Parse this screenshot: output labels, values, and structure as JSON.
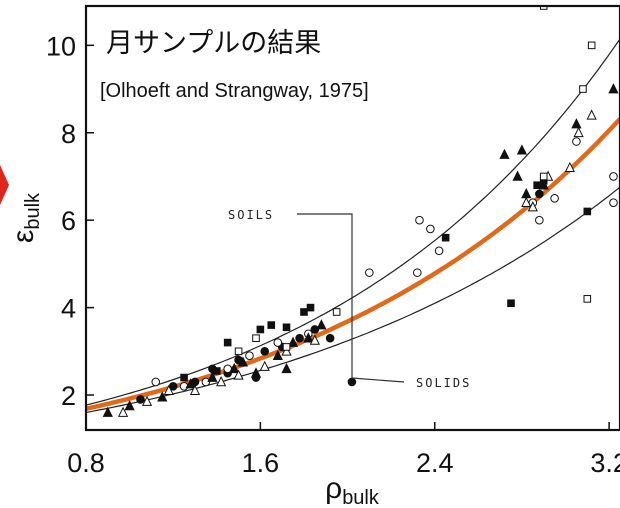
{
  "chart_data": {
    "type": "scatter",
    "title": "月サンプルの結果",
    "subtitle": "[Olhoeft and Strangway, 1975]",
    "xlabel": {
      "symbol": "ρ",
      "sub": "bulk"
    },
    "ylabel": {
      "symbol": "ε",
      "sub": "bulk"
    },
    "xlim": [
      0.8,
      3.25
    ],
    "ylim": [
      1.2,
      10.9
    ],
    "x_ticks": [
      0.8,
      1.6,
      2.4,
      3.2
    ],
    "x_tick_labels": [
      "0.8",
      "1.6",
      "2.4",
      "3.2"
    ],
    "y_ticks": [
      2,
      4,
      6,
      8,
      10
    ],
    "y_tick_labels": [
      "2",
      "4",
      "6",
      "8",
      "10"
    ],
    "grid": false,
    "annotations": [
      {
        "text": "SOILS",
        "points_to": {
          "x": 2.0,
          "y": 4.9
        }
      },
      {
        "text": "SOLIDS",
        "points_to": {
          "x": 2.0,
          "y": 4.9
        }
      }
    ],
    "curves": [
      {
        "role": "fit",
        "color": "#e06a1a",
        "formula": "1.919^x",
        "x_range": [
          0.8,
          3.25
        ]
      },
      {
        "role": "upper bound",
        "color": "#222222",
        "formula": "2.04^x",
        "x_range": [
          0.8,
          3.25
        ]
      },
      {
        "role": "lower bound",
        "color": "#222222",
        "formula": "1.8^x",
        "x_range": [
          0.8,
          3.25
        ]
      }
    ],
    "series": [
      {
        "marker": "filled-circle",
        "points": [
          [
            1.05,
            1.9
          ],
          [
            1.2,
            2.2
          ],
          [
            1.3,
            2.3
          ],
          [
            1.38,
            2.6
          ],
          [
            1.45,
            2.5
          ],
          [
            1.5,
            2.8
          ],
          [
            1.58,
            2.4
          ],
          [
            1.62,
            3.0
          ],
          [
            1.7,
            3.1
          ],
          [
            1.78,
            3.3
          ],
          [
            1.85,
            3.5
          ],
          [
            1.92,
            3.3
          ],
          [
            2.02,
            2.3
          ],
          [
            2.88,
            6.6
          ]
        ]
      },
      {
        "marker": "open-circle",
        "points": [
          [
            1.12,
            2.3
          ],
          [
            1.25,
            2.2
          ],
          [
            1.35,
            2.3
          ],
          [
            1.45,
            2.6
          ],
          [
            1.55,
            2.9
          ],
          [
            1.68,
            3.2
          ],
          [
            1.82,
            3.4
          ],
          [
            2.1,
            4.8
          ],
          [
            2.32,
            4.8
          ],
          [
            2.33,
            6.0
          ],
          [
            2.38,
            5.8
          ],
          [
            2.42,
            5.3
          ],
          [
            2.85,
            6.4
          ],
          [
            2.88,
            6.0
          ],
          [
            3.05,
            7.8
          ],
          [
            3.22,
            7.0
          ],
          [
            3.22,
            6.4
          ],
          [
            2.95,
            6.5
          ]
        ]
      },
      {
        "marker": "filled-triangle",
        "points": [
          [
            0.9,
            1.6
          ],
          [
            1.0,
            1.75
          ],
          [
            1.15,
            1.95
          ],
          [
            1.28,
            2.25
          ],
          [
            1.38,
            2.4
          ],
          [
            1.48,
            2.6
          ],
          [
            1.52,
            2.75
          ],
          [
            1.58,
            2.5
          ],
          [
            1.68,
            2.9
          ],
          [
            1.72,
            2.6
          ],
          [
            1.75,
            3.2
          ],
          [
            1.82,
            3.3
          ],
          [
            1.88,
            3.6
          ],
          [
            2.72,
            7.5
          ],
          [
            2.78,
            7.0
          ],
          [
            2.8,
            7.6
          ],
          [
            2.82,
            6.6
          ],
          [
            2.9,
            6.8
          ],
          [
            3.05,
            8.2
          ],
          [
            3.22,
            9.0
          ]
        ]
      },
      {
        "marker": "open-triangle",
        "points": [
          [
            0.97,
            1.6
          ],
          [
            1.08,
            1.85
          ],
          [
            1.18,
            2.1
          ],
          [
            1.3,
            2.1
          ],
          [
            1.42,
            2.3
          ],
          [
            1.5,
            2.45
          ],
          [
            1.62,
            2.65
          ],
          [
            1.72,
            3.0
          ],
          [
            1.85,
            3.25
          ],
          [
            2.82,
            6.4
          ],
          [
            2.85,
            6.3
          ],
          [
            2.92,
            7.0
          ],
          [
            3.02,
            7.2
          ],
          [
            3.06,
            8.0
          ],
          [
            3.12,
            8.4
          ],
          [
            3.24,
            11.0
          ]
        ]
      },
      {
        "marker": "filled-square",
        "points": [
          [
            1.25,
            2.4
          ],
          [
            1.4,
            2.55
          ],
          [
            1.45,
            3.2
          ],
          [
            1.6,
            3.5
          ],
          [
            1.65,
            3.6
          ],
          [
            1.72,
            3.55
          ],
          [
            1.8,
            3.9
          ],
          [
            1.83,
            4.0
          ],
          [
            2.45,
            5.6
          ],
          [
            2.75,
            4.1
          ],
          [
            2.87,
            6.8
          ],
          [
            2.9,
            6.9
          ],
          [
            3.1,
            6.2
          ]
        ]
      },
      {
        "marker": "open-square",
        "points": [
          [
            1.5,
            3.0
          ],
          [
            1.58,
            3.3
          ],
          [
            1.72,
            3.1
          ],
          [
            1.95,
            3.9
          ],
          [
            2.9,
            7.0
          ],
          [
            3.1,
            4.2
          ],
          [
            3.12,
            10.0
          ],
          [
            3.08,
            9.0
          ],
          [
            2.9,
            10.9
          ]
        ]
      }
    ]
  }
}
